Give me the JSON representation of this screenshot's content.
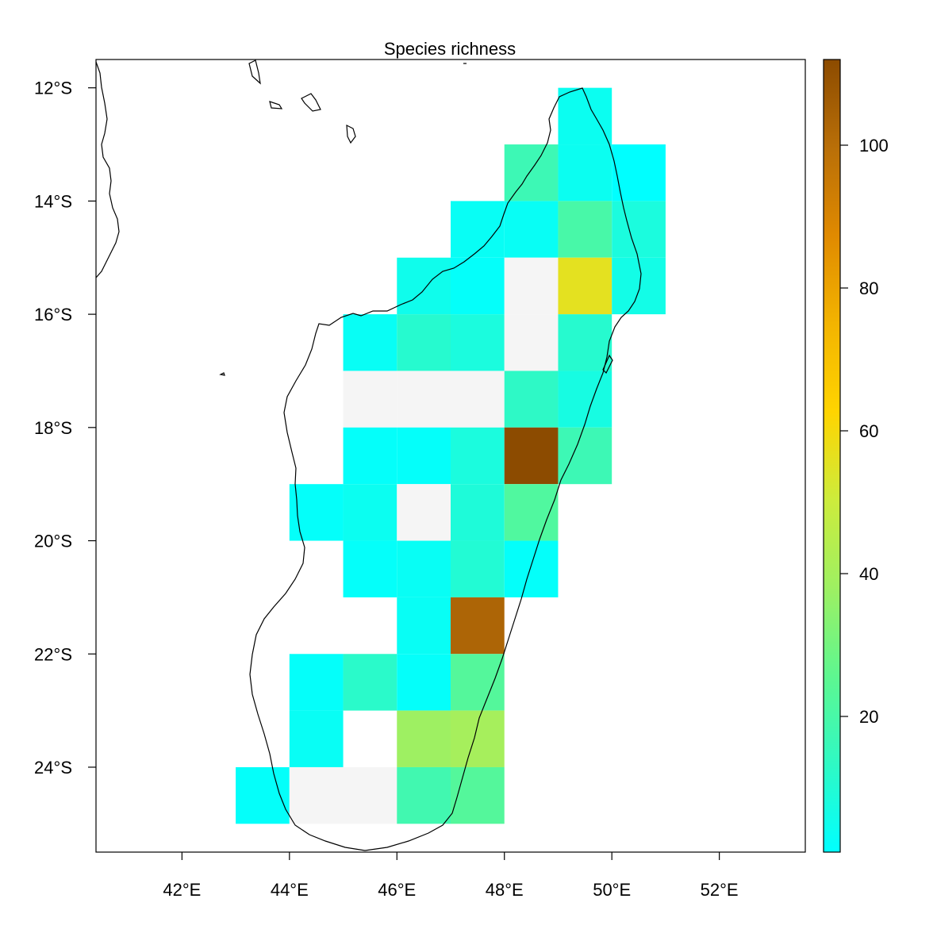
{
  "title": "Species richness",
  "colors": {
    "na_cell": "#f5f5f5",
    "frame": "#000000",
    "ramp": [
      "#00ffff",
      "#2ff9c4",
      "#5ef790",
      "#9ef062",
      "#cdec3c",
      "#ffd400",
      "#f3b400",
      "#e08a00",
      "#b96f08",
      "#8c4b00"
    ]
  },
  "x_axis": {
    "range": [
      40.4,
      53.6
    ],
    "ticks": [
      42,
      44,
      46,
      48,
      50,
      52
    ],
    "tick_labels": [
      "42°E",
      "44°E",
      "46°E",
      "48°E",
      "50°E",
      "52°E"
    ]
  },
  "y_axis": {
    "range": [
      -25.5,
      -11.5
    ],
    "ticks": [
      -12,
      -14,
      -16,
      -18,
      -20,
      -22,
      -24
    ],
    "tick_labels": [
      "12°S",
      "14°S",
      "16°S",
      "18°S",
      "20°S",
      "22°S",
      "24°S"
    ]
  },
  "legend": {
    "position": "right",
    "range": [
      1,
      112
    ],
    "ticks": [
      20,
      40,
      60,
      80,
      100
    ],
    "tick_labels": [
      "20",
      "40",
      "60",
      "80",
      "100"
    ]
  },
  "chart_data": {
    "type": "heatmap",
    "title": "Species richness",
    "cell_size_deg": 1,
    "value_range": [
      1,
      112
    ],
    "cells": [
      {
        "lon": 49,
        "lat": -13,
        "value": 4
      },
      {
        "lon": 48,
        "lat": -14,
        "value": 17
      },
      {
        "lon": 49,
        "lat": -14,
        "value": 4
      },
      {
        "lon": 50,
        "lat": -14,
        "value": 1
      },
      {
        "lon": 47,
        "lat": -15,
        "value": 3
      },
      {
        "lon": 48,
        "lat": -15,
        "value": 3
      },
      {
        "lon": 49,
        "lat": -15,
        "value": 20
      },
      {
        "lon": 50,
        "lat": -15,
        "value": 8
      },
      {
        "lon": 46,
        "lat": -16,
        "value": 5
      },
      {
        "lon": 47,
        "lat": -16,
        "value": 2
      },
      {
        "lon": 48,
        "lat": -16,
        "value": null
      },
      {
        "lon": 49,
        "lat": -16,
        "value": 56
      },
      {
        "lon": 50,
        "lat": -16,
        "value": 6
      },
      {
        "lon": 45,
        "lat": -17,
        "value": 3
      },
      {
        "lon": 46,
        "lat": -17,
        "value": 11
      },
      {
        "lon": 47,
        "lat": -17,
        "value": 8
      },
      {
        "lon": 48,
        "lat": -17,
        "value": null
      },
      {
        "lon": 49,
        "lat": -17,
        "value": 11
      },
      {
        "lon": 45,
        "lat": -18,
        "value": null
      },
      {
        "lon": 46,
        "lat": -18,
        "value": null
      },
      {
        "lon": 47,
        "lat": -18,
        "value": null
      },
      {
        "lon": 48,
        "lat": -18,
        "value": 13
      },
      {
        "lon": 49,
        "lat": -18,
        "value": 7
      },
      {
        "lon": 45,
        "lat": -19,
        "value": 2
      },
      {
        "lon": 46,
        "lat": -19,
        "value": 2
      },
      {
        "lon": 47,
        "lat": -19,
        "value": 8
      },
      {
        "lon": 48,
        "lat": -19,
        "value": 112
      },
      {
        "lon": 49,
        "lat": -19,
        "value": 17
      },
      {
        "lon": 44,
        "lat": -20,
        "value": 2
      },
      {
        "lon": 45,
        "lat": -20,
        "value": 4
      },
      {
        "lon": 46,
        "lat": -20,
        "value": null
      },
      {
        "lon": 47,
        "lat": -20,
        "value": 9
      },
      {
        "lon": 48,
        "lat": -20,
        "value": 22
      },
      {
        "lon": 45,
        "lat": -21,
        "value": 2
      },
      {
        "lon": 46,
        "lat": -21,
        "value": 3
      },
      {
        "lon": 47,
        "lat": -21,
        "value": 10
      },
      {
        "lon": 48,
        "lat": -21,
        "value": 2
      },
      {
        "lon": 46,
        "lat": -22,
        "value": 3
      },
      {
        "lon": 47,
        "lat": -22,
        "value": 103
      },
      {
        "lon": 44,
        "lat": -23,
        "value": 2
      },
      {
        "lon": 45,
        "lat": -23,
        "value": 12
      },
      {
        "lon": 46,
        "lat": -23,
        "value": 2
      },
      {
        "lon": 47,
        "lat": -23,
        "value": 23
      },
      {
        "lon": 44,
        "lat": -24,
        "value": 3
      },
      {
        "lon": 46,
        "lat": -24,
        "value": 38
      },
      {
        "lon": 47,
        "lat": -24,
        "value": 40
      },
      {
        "lon": 43,
        "lat": -25,
        "value": 2
      },
      {
        "lon": 44,
        "lat": -25,
        "value": null
      },
      {
        "lon": 45,
        "lat": -25,
        "value": null
      },
      {
        "lon": 46,
        "lat": -25,
        "value": 18
      },
      {
        "lon": 47,
        "lat": -25,
        "value": 23
      }
    ]
  }
}
